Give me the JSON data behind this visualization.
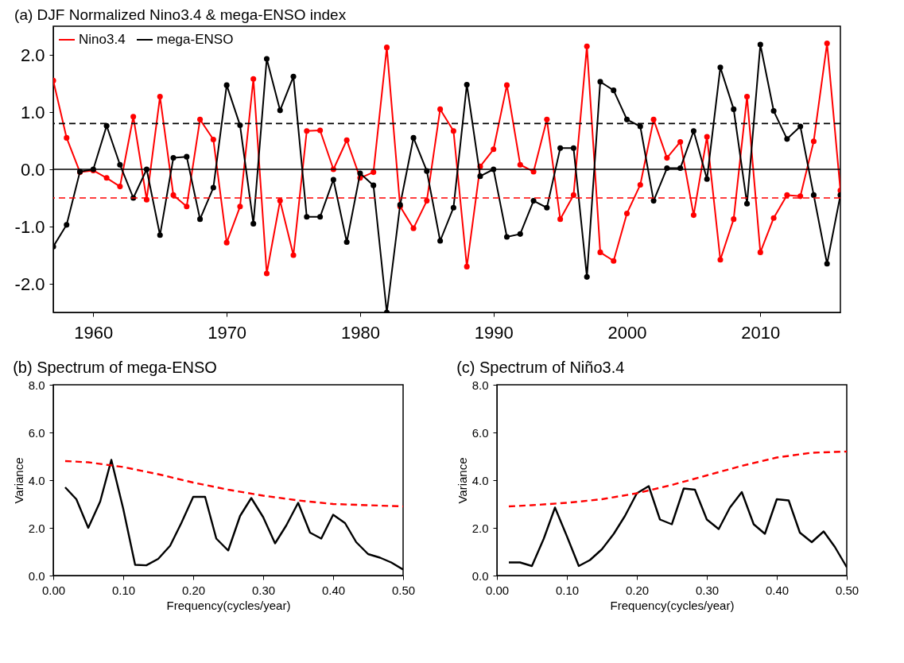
{
  "chart_data": [
    {
      "type": "line",
      "title": "(a) DJF Normalized Nino3.4 & mega-ENSO index",
      "x": [
        1957,
        1958,
        1959,
        1960,
        1961,
        1962,
        1963,
        1964,
        1965,
        1966,
        1967,
        1968,
        1969,
        1970,
        1971,
        1972,
        1973,
        1974,
        1975,
        1976,
        1977,
        1978,
        1979,
        1980,
        1981,
        1982,
        1983,
        1984,
        1985,
        1986,
        1987,
        1988,
        1989,
        1990,
        1991,
        1992,
        1993,
        1994,
        1995,
        1996,
        1997,
        1998,
        1999,
        2000,
        2001,
        2002,
        2003,
        2004,
        2005,
        2006,
        2007,
        2008,
        2009,
        2010,
        2011,
        2012,
        2013,
        2014,
        2015,
        2016
      ],
      "series": [
        {
          "name": "Nino3.4",
          "color": "#ff0000",
          "values": [
            1.55,
            0.55,
            -0.05,
            -0.02,
            -0.15,
            -0.3,
            0.92,
            -0.53,
            1.27,
            -0.45,
            -0.65,
            0.87,
            0.52,
            -1.28,
            -0.65,
            1.58,
            -1.82,
            -0.55,
            -1.5,
            0.67,
            0.68,
            0.0,
            0.51,
            -0.15,
            -0.05,
            2.13,
            -0.65,
            -1.03,
            -0.55,
            1.05,
            0.67,
            -1.7,
            0.05,
            0.35,
            1.47,
            0.08,
            -0.04,
            0.87,
            -0.87,
            -0.45,
            2.15,
            -1.45,
            -1.6,
            -0.77,
            -0.27,
            0.87,
            0.2,
            0.48,
            -0.8,
            0.57,
            -1.58,
            -0.87,
            1.27,
            -1.45,
            -0.85,
            -0.45,
            -0.47,
            0.49,
            2.2,
            -0.37
          ]
        },
        {
          "name": "mega-ENSO",
          "color": "#000000",
          "values": [
            -1.35,
            -0.97,
            -0.04,
            0.0,
            0.76,
            0.08,
            -0.5,
            0.0,
            -1.15,
            0.2,
            0.22,
            -0.87,
            -0.32,
            1.47,
            0.77,
            -0.95,
            1.93,
            1.03,
            1.62,
            -0.83,
            -0.83,
            -0.18,
            -1.27,
            -0.07,
            -0.28,
            -2.5,
            -0.62,
            0.55,
            -0.03,
            -1.25,
            -0.67,
            1.48,
            -0.12,
            0.0,
            -1.18,
            -1.13,
            -0.55,
            -0.67,
            0.37,
            0.37,
            -1.88,
            1.53,
            1.38,
            0.87,
            0.75,
            -0.55,
            0.02,
            0.02,
            0.67,
            -0.17,
            1.78,
            1.05,
            -0.6,
            2.18,
            1.02,
            0.53,
            0.75,
            -0.45,
            -1.65,
            -0.45
          ]
        }
      ],
      "xlim": [
        1957,
        2016
      ],
      "xticks": [
        1960,
        1970,
        1980,
        1990,
        2000,
        2010
      ],
      "ylim": [
        -2.5,
        2.5
      ],
      "yticks": [
        {
          "value": -2,
          "label": "-2.0"
        },
        {
          "value": -1,
          "label": "-1.0"
        },
        {
          "value": 0,
          "label": "0.0"
        },
        {
          "value": 1,
          "label": "1.0"
        },
        {
          "value": 2,
          "label": "2.0"
        }
      ],
      "ref_lines": [
        {
          "axis": "y",
          "value": 0.8,
          "color": "#000000",
          "line_style": "dashed"
        },
        {
          "axis": "y",
          "value": -0.5,
          "color": "#ff0000",
          "line_style": "dashed"
        },
        {
          "axis": "y",
          "value": 0,
          "color": "#000000",
          "line_style": "solid"
        }
      ],
      "marker": "circle",
      "line_style": "solid",
      "legend": "top left",
      "grid": false
    },
    {
      "type": "line",
      "title": "(b) Spectrum of mega-ENSO",
      "xlabel": "Frequency(cycles/year)",
      "ylabel": "Variance",
      "series": [
        {
          "color": "#000000",
          "line_style": "solid",
          "x": [
            0.017,
            0.033,
            0.05,
            0.067,
            0.083,
            0.1,
            0.117,
            0.133,
            0.15,
            0.167,
            0.183,
            0.2,
            0.217,
            0.233,
            0.25,
            0.267,
            0.283,
            0.3,
            0.317,
            0.333,
            0.35,
            0.367,
            0.383,
            0.4,
            0.417,
            0.433,
            0.45,
            0.467,
            0.483,
            0.5
          ],
          "values": [
            3.7,
            3.2,
            2.0,
            3.1,
            4.85,
            2.8,
            0.45,
            0.43,
            0.7,
            1.25,
            2.2,
            3.3,
            3.3,
            1.55,
            1.05,
            2.5,
            3.25,
            2.45,
            1.35,
            2.1,
            3.05,
            1.8,
            1.55,
            2.55,
            2.2,
            1.4,
            0.9,
            0.75,
            0.55,
            0.25
          ]
        },
        {
          "color": "#ff0000",
          "line_style": "dashed",
          "x": [
            0.017,
            0.05,
            0.1,
            0.15,
            0.2,
            0.25,
            0.3,
            0.35,
            0.4,
            0.45,
            0.5
          ],
          "values": [
            4.8,
            4.75,
            4.55,
            4.25,
            3.9,
            3.6,
            3.35,
            3.15,
            3.0,
            2.95,
            2.9
          ]
        }
      ],
      "xlim": [
        0,
        0.5
      ],
      "xticks": [
        {
          "value": 0,
          "label": "0.00"
        },
        {
          "value": 0.1,
          "label": "0.10"
        },
        {
          "value": 0.2,
          "label": "0.20"
        },
        {
          "value": 0.3,
          "label": "0.30"
        },
        {
          "value": 0.4,
          "label": "0.40"
        },
        {
          "value": 0.5,
          "label": "0.50"
        }
      ],
      "ylim": [
        0,
        8
      ],
      "yticks": [
        {
          "value": 0,
          "label": "0.0"
        },
        {
          "value": 2,
          "label": "2.0"
        },
        {
          "value": 4,
          "label": "4.0"
        },
        {
          "value": 6,
          "label": "6.0"
        },
        {
          "value": 8,
          "label": "8.0"
        }
      ],
      "marker": "none",
      "grid": false
    },
    {
      "type": "line",
      "title": "(c) Spectrum of Niño3.4",
      "xlabel": "Frequency(cycles/year)",
      "ylabel": "Variance",
      "series": [
        {
          "color": "#000000",
          "line_style": "solid",
          "x": [
            0.017,
            0.033,
            0.05,
            0.067,
            0.083,
            0.1,
            0.117,
            0.133,
            0.15,
            0.167,
            0.183,
            0.2,
            0.217,
            0.233,
            0.25,
            0.267,
            0.283,
            0.3,
            0.317,
            0.333,
            0.35,
            0.367,
            0.383,
            0.4,
            0.417,
            0.433,
            0.45,
            0.467,
            0.483,
            0.5
          ],
          "values": [
            0.55,
            0.55,
            0.4,
            1.55,
            2.85,
            1.65,
            0.4,
            0.65,
            1.1,
            1.75,
            2.5,
            3.45,
            3.75,
            2.35,
            2.15,
            3.65,
            3.6,
            2.35,
            1.95,
            2.85,
            3.5,
            2.15,
            1.75,
            3.2,
            3.15,
            1.8,
            1.4,
            1.85,
            1.2,
            0.35
          ]
        },
        {
          "color": "#ff0000",
          "line_style": "dashed",
          "x": [
            0.017,
            0.05,
            0.1,
            0.15,
            0.2,
            0.25,
            0.3,
            0.35,
            0.4,
            0.45,
            0.5
          ],
          "values": [
            2.9,
            2.95,
            3.05,
            3.2,
            3.45,
            3.8,
            4.2,
            4.6,
            4.95,
            5.15,
            5.2
          ]
        }
      ],
      "xlim": [
        0,
        0.5
      ],
      "xticks": [
        {
          "value": 0,
          "label": "0.00"
        },
        {
          "value": 0.1,
          "label": "0.10"
        },
        {
          "value": 0.2,
          "label": "0.20"
        },
        {
          "value": 0.3,
          "label": "0.30"
        },
        {
          "value": 0.4,
          "label": "0.40"
        },
        {
          "value": 0.5,
          "label": "0.50"
        }
      ],
      "ylim": [
        0,
        8
      ],
      "yticks": [
        {
          "value": 0,
          "label": "0.0"
        },
        {
          "value": 2,
          "label": "2.0"
        },
        {
          "value": 4,
          "label": "4.0"
        },
        {
          "value": 6,
          "label": "6.0"
        },
        {
          "value": 8,
          "label": "8.0"
        }
      ],
      "marker": "none",
      "grid": false
    }
  ]
}
